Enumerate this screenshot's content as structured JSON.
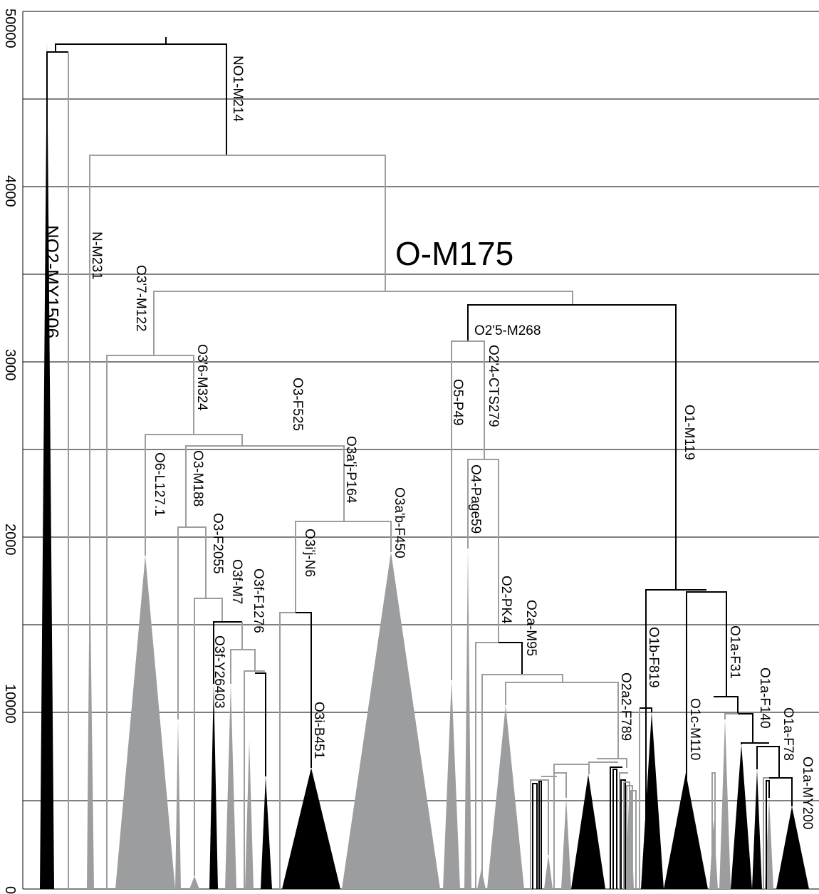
{
  "axis": {
    "ticks": [
      "0",
      "10000",
      "2000",
      "3000",
      "4000",
      "50000"
    ]
  },
  "title": "O-M175",
  "labels": {
    "no2": "NO2-MY1506",
    "no1": "NO1-M214",
    "n": "N-M231",
    "o37": "O3'7-M122",
    "o36": "O3'6-M324",
    "o3f525": "O3-F525",
    "o6": "O6-L127.1",
    "o3m188": "O3-M188",
    "o3f2055": "O3-F2055",
    "o3fm7": "O3f-M7",
    "o3ff1276": "O3f-F1276",
    "o3fy": "O3f-Y26403",
    "o3aj": "O3a'j-P164",
    "o3ij": "O3i'j-N6",
    "o3ab": "O3a'b-F450",
    "o3ib": "O3i-B451",
    "o25": "O2'5-M268",
    "o5": "O5-P49",
    "o24": "O2'4-CTS279",
    "o4": "O4-Page59",
    "o2": "O2-PK4",
    "o2a": "O2a-M95",
    "o2a2": "O2a2-F789",
    "o1": "O1-M119",
    "o1b": "O1b-F819",
    "o1c": "O1c-M110",
    "o1af31": "O1a-F31",
    "o1af140": "O1a-F140",
    "o1af78": "O1a-F78",
    "o1amy": "O1a-MY200"
  },
  "colors": {
    "black_branch": "#000000",
    "gray_branch": "#9b9d9e",
    "gridline": "#000000",
    "background": "#ffffff"
  }
}
